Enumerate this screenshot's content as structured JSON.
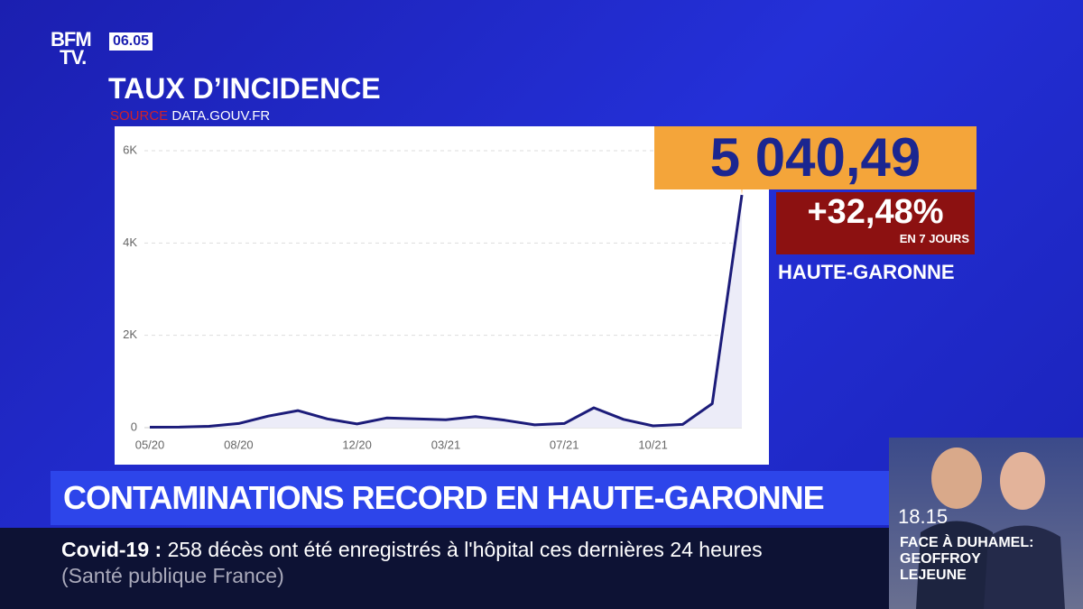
{
  "logo": {
    "top": "BFM",
    "bottom": "TV."
  },
  "clock": "06.05",
  "header": {
    "title": "TAUX D’INCIDENCE",
    "source_label": "SOURCE",
    "source": "DATA.GOUV.FR"
  },
  "chart_data": {
    "type": "line",
    "categories": [
      "05/20",
      null,
      null,
      "08/20",
      null,
      null,
      null,
      "12/20",
      null,
      null,
      "03/21",
      null,
      null,
      null,
      "07/21",
      null,
      null,
      "10/21",
      null,
      null,
      null
    ],
    "values": [
      10,
      12,
      30,
      90,
      250,
      370,
      190,
      80,
      210,
      190,
      170,
      240,
      160,
      60,
      90,
      430,
      180,
      40,
      70,
      520,
      5040.49
    ],
    "value_labels": [
      null,
      null,
      null,
      null,
      null,
      null,
      null,
      null,
      null,
      null,
      null,
      null,
      null,
      null,
      null,
      null,
      null,
      null,
      null,
      null,
      "5 040,49"
    ],
    "color": "#1c1c7a",
    "area_color": "#ececf8",
    "ylim": [
      0,
      6000
    ],
    "yticks": [
      0,
      {
        "value": 2000,
        "label": "2K"
      },
      {
        "value": 4000,
        "label": "4K"
      },
      {
        "value": 6000,
        "label": "6K"
      }
    ],
    "grid": true
  },
  "callout": {
    "change": "+32,48%",
    "period": "EN 7 JOURS",
    "region": "HAUTE-GARONNE"
  },
  "headline": "CONTAMINATIONS RECORD EN HAUTE-GARONNE",
  "ticker": {
    "topic": "Covid-19",
    "separator": ":",
    "text": "258 décès ont été enregistrés à l'hôpital ces dernières 24 heures",
    "source": "(Santé publique France)"
  },
  "inset": {
    "time": "18.15",
    "show": "FACE À DUHAMEL:",
    "guest_first": "GEOFFROY",
    "guest_last": "LEJEUNE"
  }
}
